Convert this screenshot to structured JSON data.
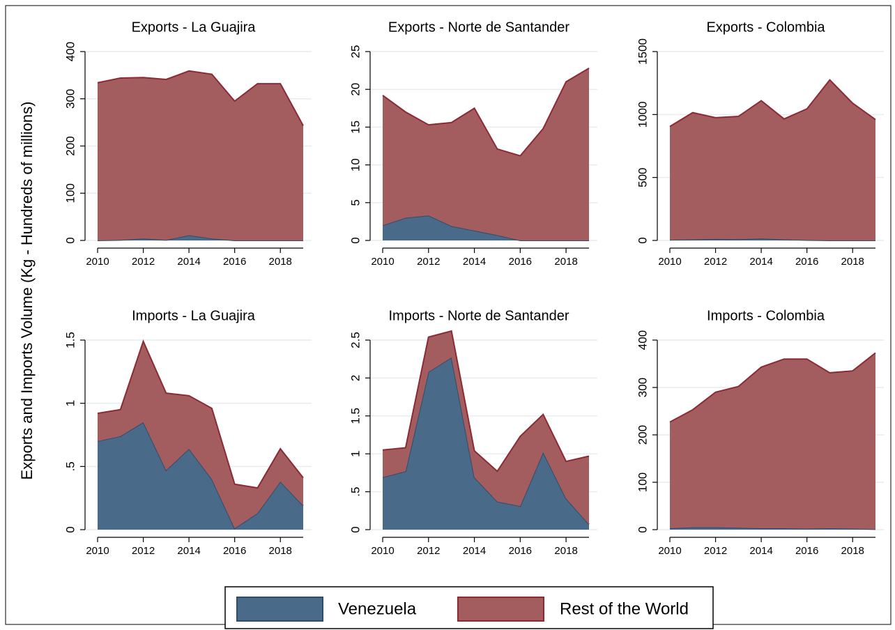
{
  "y_label": "Exports and Imports Volume (Kg - Hundreds of millions)",
  "chart_data": [
    {
      "type": "area",
      "stacked": true,
      "grid": true,
      "title": "Exports - La Guajira",
      "x": [
        2010,
        2011,
        2012,
        2013,
        2014,
        2015,
        2016,
        2017,
        2018,
        2019
      ],
      "xlim": [
        2010,
        2019
      ],
      "xticks": [
        2010,
        2012,
        2014,
        2016,
        2018
      ],
      "ylim": [
        0,
        400
      ],
      "yticks": [
        0,
        100,
        200,
        300,
        400
      ],
      "series": [
        {
          "name": "Venezuela",
          "color": "#4a6a8a",
          "values": [
            0,
            1,
            4,
            1,
            11,
            4,
            0,
            0,
            0,
            0
          ]
        },
        {
          "name": "Rest of the World",
          "color": "#a35d5f",
          "values": [
            334,
            343,
            341,
            340,
            348,
            348,
            295,
            332,
            332,
            243
          ]
        }
      ]
    },
    {
      "type": "area",
      "stacked": true,
      "grid": true,
      "title": "Exports - Norte de Santander",
      "x": [
        2010,
        2011,
        2012,
        2013,
        2014,
        2015,
        2016,
        2017,
        2018,
        2019
      ],
      "xlim": [
        2010,
        2019
      ],
      "xticks": [
        2010,
        2012,
        2014,
        2016,
        2018
      ],
      "ylim": [
        0,
        25
      ],
      "yticks": [
        0,
        5,
        10,
        15,
        20,
        25
      ],
      "series": [
        {
          "name": "Venezuela",
          "color": "#4a6a8a",
          "values": [
            2.0,
            3.0,
            3.3,
            1.9,
            1.3,
            0.7,
            0,
            0,
            0,
            0
          ]
        },
        {
          "name": "Rest of the World",
          "color": "#a35d5f",
          "values": [
            17.2,
            14.0,
            12.0,
            13.7,
            16.2,
            11.4,
            11.2,
            14.8,
            21.0,
            22.8
          ]
        }
      ]
    },
    {
      "type": "area",
      "stacked": true,
      "grid": true,
      "title": "Exports - Colombia",
      "x": [
        2010,
        2011,
        2012,
        2013,
        2014,
        2015,
        2016,
        2017,
        2018,
        2019
      ],
      "xlim": [
        2010,
        2019
      ],
      "xticks": [
        2010,
        2012,
        2014,
        2016,
        2018
      ],
      "ylim": [
        0,
        1500
      ],
      "yticks": [
        0,
        500,
        1000,
        1500
      ],
      "series": [
        {
          "name": "Venezuela",
          "color": "#4a6a8a",
          "values": [
            5,
            8,
            12,
            10,
            15,
            8,
            3,
            0,
            0,
            0
          ]
        },
        {
          "name": "Rest of the World",
          "color": "#a35d5f",
          "values": [
            900,
            1007,
            963,
            975,
            1095,
            957,
            1042,
            1275,
            1090,
            960
          ]
        }
      ]
    },
    {
      "type": "area",
      "stacked": true,
      "grid": true,
      "title": "Imports - La Guajira",
      "x": [
        2010,
        2011,
        2012,
        2013,
        2014,
        2015,
        2016,
        2017,
        2018,
        2019
      ],
      "xlim": [
        2010,
        2019
      ],
      "xticks": [
        2010,
        2012,
        2014,
        2016,
        2018
      ],
      "ylim": [
        0,
        1.5
      ],
      "yticks": [
        0,
        {
          "value": 0.5,
          "label": ".5"
        },
        1,
        1.5
      ],
      "series": [
        {
          "name": "Venezuela",
          "color": "#4a6a8a",
          "values": [
            0.7,
            0.74,
            0.85,
            0.47,
            0.64,
            0.4,
            0.01,
            0.13,
            0.38,
            0.19
          ]
        },
        {
          "name": "Rest of the World",
          "color": "#a35d5f",
          "values": [
            0.22,
            0.21,
            0.64,
            0.61,
            0.42,
            0.56,
            0.35,
            0.2,
            0.26,
            0.22
          ]
        }
      ]
    },
    {
      "type": "area",
      "stacked": true,
      "grid": true,
      "title": "Imports - Norte de Santander",
      "x": [
        2010,
        2011,
        2012,
        2013,
        2014,
        2015,
        2016,
        2017,
        2018,
        2019
      ],
      "xlim": [
        2010,
        2019
      ],
      "xticks": [
        2010,
        2012,
        2014,
        2016,
        2018
      ],
      "ylim": [
        0,
        2.5
      ],
      "yticks": [
        0,
        {
          "value": 0.5,
          "label": ".5"
        },
        1,
        1.5,
        2,
        2.5
      ],
      "series": [
        {
          "name": "Venezuela",
          "color": "#4a6a8a",
          "values": [
            0.69,
            0.77,
            2.08,
            2.27,
            0.69,
            0.37,
            0.31,
            1.02,
            0.41,
            0.07
          ]
        },
        {
          "name": "Rest of the World",
          "color": "#a35d5f",
          "values": [
            0.36,
            0.31,
            0.46,
            0.35,
            0.35,
            0.4,
            0.92,
            0.5,
            0.49,
            0.9
          ]
        }
      ]
    },
    {
      "type": "area",
      "stacked": true,
      "grid": true,
      "title": "Imports - Colombia",
      "x": [
        2010,
        2011,
        2012,
        2013,
        2014,
        2015,
        2016,
        2017,
        2018,
        2019
      ],
      "xlim": [
        2010,
        2019
      ],
      "xticks": [
        2010,
        2012,
        2014,
        2016,
        2018
      ],
      "ylim": [
        0,
        400
      ],
      "yticks": [
        0,
        100,
        200,
        300,
        400
      ],
      "series": [
        {
          "name": "Venezuela",
          "color": "#4a6a8a",
          "values": [
            3,
            5,
            5,
            4,
            3,
            3,
            2,
            3,
            2,
            1
          ]
        },
        {
          "name": "Rest of the World",
          "color": "#a35d5f",
          "values": [
            224,
            248,
            285,
            298,
            340,
            357,
            358,
            328,
            333,
            372
          ]
        }
      ]
    }
  ]
}
